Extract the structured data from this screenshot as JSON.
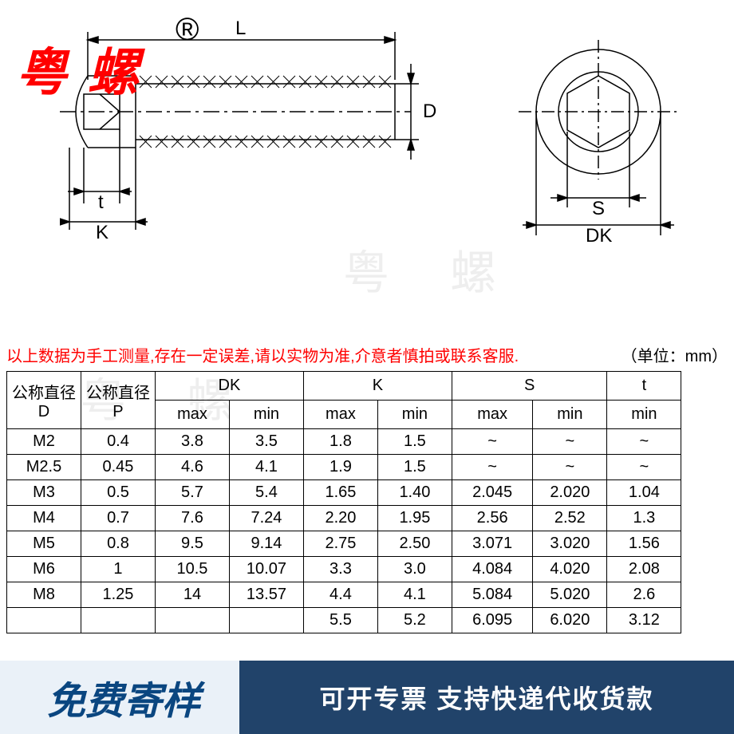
{
  "brand": {
    "text": "粤 螺",
    "reg": "®",
    "color": "#ff0000",
    "fontsize": 64
  },
  "watermark": "粤 螺",
  "diagram": {
    "side_view": {
      "labels": {
        "L": "L",
        "D": "D",
        "t": "t",
        "K": "K"
      },
      "stroke": "#000000"
    },
    "end_view": {
      "labels": {
        "S": "S",
        "DK": "DK"
      },
      "stroke": "#000000"
    }
  },
  "notice": "以上数据为手工测量,存在一定误差,请以实物为准,介意者慎拍或联系客服.",
  "unit": "（单位：mm）",
  "table": {
    "header_row1": [
      "公称直径\nD",
      "公称直径\nP",
      "DK",
      "K",
      "S",
      "t"
    ],
    "header_row2": [
      "max",
      "min",
      "max",
      "min",
      "max",
      "min",
      "min"
    ],
    "rows": [
      [
        "M2",
        "0.4",
        "3.8",
        "3.5",
        "1.8",
        "1.5",
        "~",
        "~",
        "~"
      ],
      [
        "M2.5",
        "0.45",
        "4.6",
        "4.1",
        "1.9",
        "1.5",
        "~",
        "~",
        "~"
      ],
      [
        "M3",
        "0.5",
        "5.7",
        "5.4",
        "1.65",
        "1.40",
        "2.045",
        "2.020",
        "1.04"
      ],
      [
        "M4",
        "0.7",
        "7.6",
        "7.24",
        "2.20",
        "1.95",
        "2.56",
        "2.52",
        "1.3"
      ],
      [
        "M5",
        "0.8",
        "9.5",
        "9.14",
        "2.75",
        "2.50",
        "3.071",
        "3.020",
        "1.56"
      ],
      [
        "M6",
        "1",
        "10.5",
        "10.07",
        "3.3",
        "3.0",
        "4.084",
        "4.020",
        "2.08"
      ],
      [
        "M8",
        "1.25",
        "14",
        "13.57",
        "4.4",
        "4.1",
        "5.084",
        "5.020",
        "2.6"
      ],
      [
        "",
        "",
        "",
        "",
        "5.5",
        "5.2",
        "6.095",
        "6.020",
        "3.12"
      ]
    ],
    "col_widths": [
      "11%",
      "11%",
      "11%",
      "11%",
      "11%",
      "11%",
      "12%",
      "11%",
      "11%"
    ],
    "border_color": "#000000",
    "fontsize": 20
  },
  "footer": {
    "left": {
      "text": "免费寄样",
      "bg": "#eaf1f8",
      "color": "#0a4680",
      "fontsize": 48
    },
    "right": {
      "text": "可开专票 支持快递代收货款",
      "bg": "#21436a",
      "color": "#ffffff",
      "fontsize": 32
    }
  }
}
